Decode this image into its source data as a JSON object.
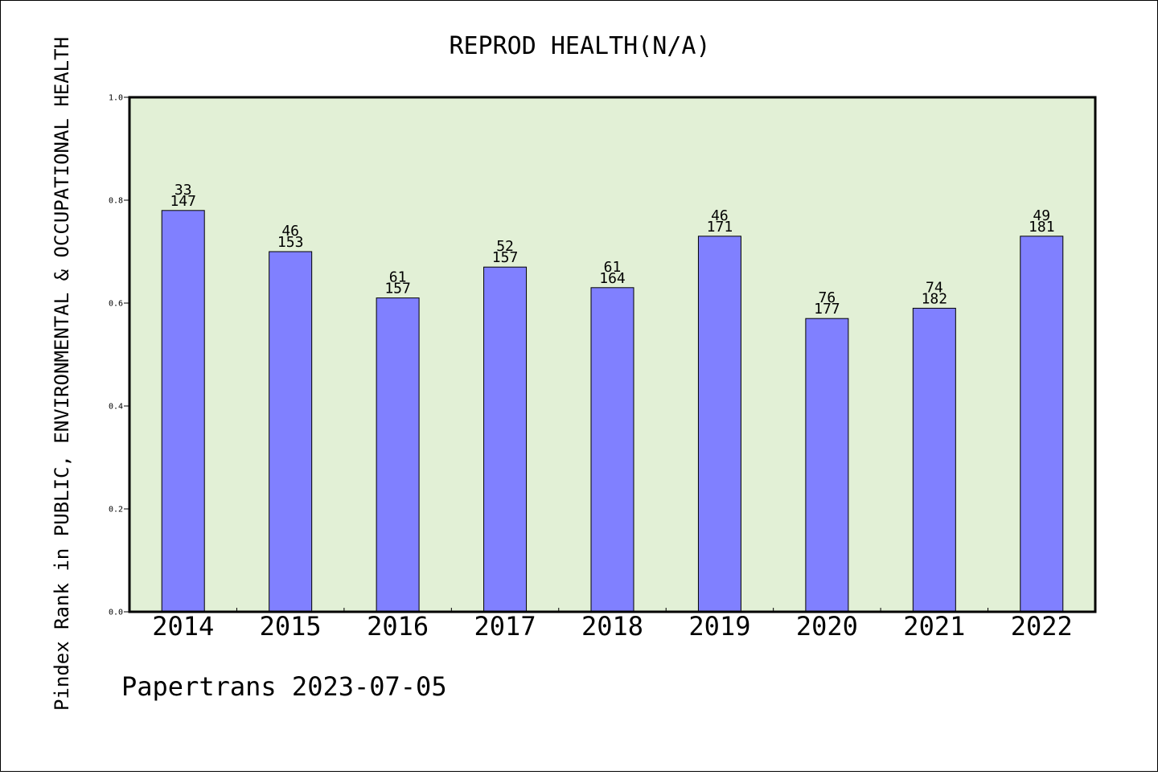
{
  "chart_data": {
    "type": "bar",
    "title": "REPROD HEALTH(N/A)",
    "ylabel": "Pindex Rank in PUBLIC, ENVIRONMENTAL & OCCUPATIONAL HEALTH",
    "xlabel": "",
    "ylim": [
      0,
      1.0
    ],
    "yticks": [
      "0.0",
      "0.2",
      "0.4",
      "0.6",
      "0.8",
      "1.0"
    ],
    "ytick_values": [
      0,
      0.2,
      0.4,
      0.6,
      0.8,
      1.0
    ],
    "categories": [
      "2014",
      "2015",
      "2016",
      "2017",
      "2018",
      "2019",
      "2020",
      "2021",
      "2022"
    ],
    "values": [
      0.78,
      0.7,
      0.61,
      0.67,
      0.63,
      0.73,
      0.57,
      0.59,
      0.73
    ],
    "label_top": [
      "33",
      "46",
      "61",
      "52",
      "61",
      "46",
      "76",
      "74",
      "49"
    ],
    "label_bottom": [
      "147",
      "153",
      "157",
      "157",
      "164",
      "171",
      "177",
      "182",
      "181"
    ],
    "grid": false,
    "colors": {
      "bar": "#8080ff",
      "plot_background": "#e2f0d6"
    }
  },
  "footer": "Papertrans 2023-07-05"
}
